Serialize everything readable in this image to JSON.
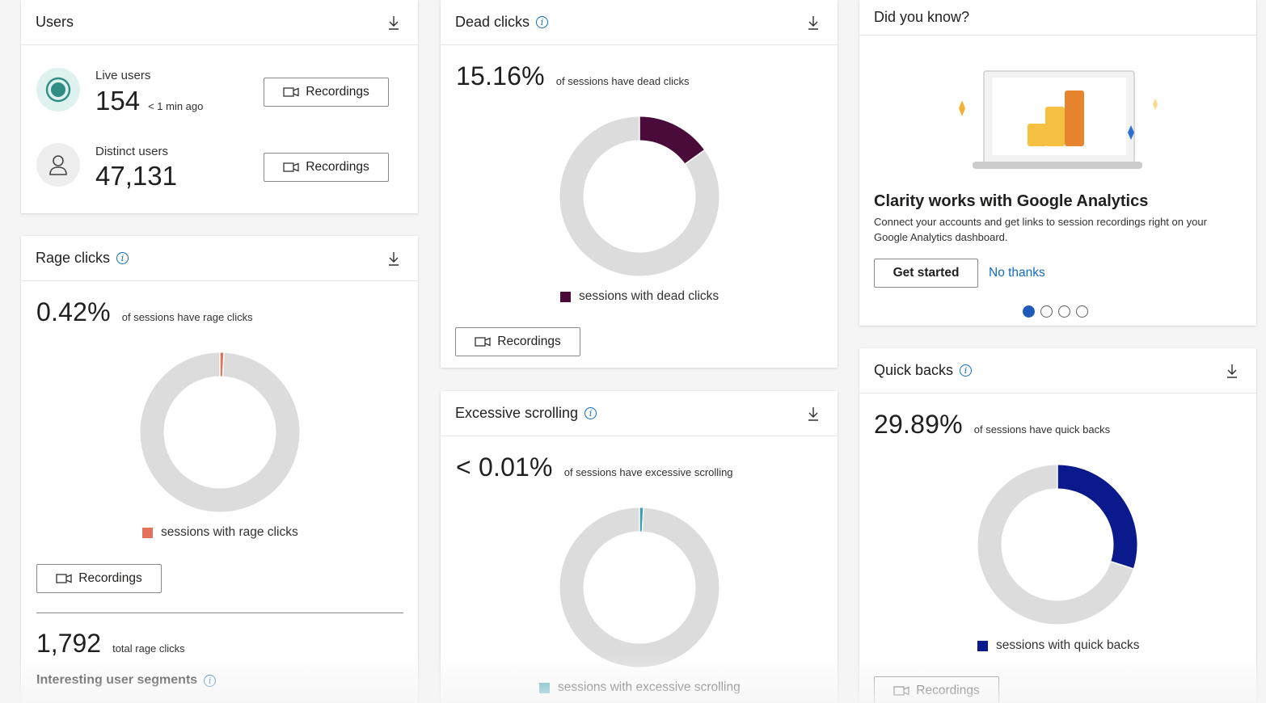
{
  "users_card": {
    "title": "Users",
    "live": {
      "label": "Live users",
      "value": "154",
      "time": "< 1 min ago",
      "button": "Recordings"
    },
    "distinct": {
      "label": "Distinct users",
      "value": "47,131",
      "button": "Recordings"
    }
  },
  "rage_card": {
    "title": "Rage clicks",
    "pct": "0.42%",
    "caption": "of sessions have rage clicks",
    "legend": "sessions with rage clicks",
    "button": "Recordings",
    "total_value": "1,792",
    "total_caption": "total rage clicks",
    "segments_title": "Interesting user segments",
    "color": "#e2725b",
    "fraction": 0.0042
  },
  "dead_card": {
    "title": "Dead clicks",
    "pct": "15.16%",
    "caption": "of sessions have dead clicks",
    "legend": "sessions with dead clicks",
    "button": "Recordings",
    "color": "#4a0b3a",
    "fraction": 0.1516
  },
  "scroll_card": {
    "title": "Excessive scrolling",
    "pct": "< 0.01%",
    "caption": "of sessions have excessive scrolling",
    "legend": "sessions with excessive scrolling",
    "color": "#3a9fb0",
    "fraction": 0.0001
  },
  "did_you_know": {
    "title": "Did you know?",
    "headline": "Clarity works with Google Analytics",
    "body": "Connect your accounts and get links to session recordings right on your Google Analytics dashboard.",
    "primary_button": "Get started",
    "secondary_link": "No thanks",
    "dots": 4,
    "active_dot": 0
  },
  "quickbacks_card": {
    "title": "Quick backs",
    "pct": "29.89%",
    "caption": "of sessions have quick backs",
    "legend": "sessions with quick backs",
    "button": "Recordings",
    "color": "#0a1a8c",
    "fraction": 0.2989
  },
  "donut_track_color": "#dcdcdc"
}
